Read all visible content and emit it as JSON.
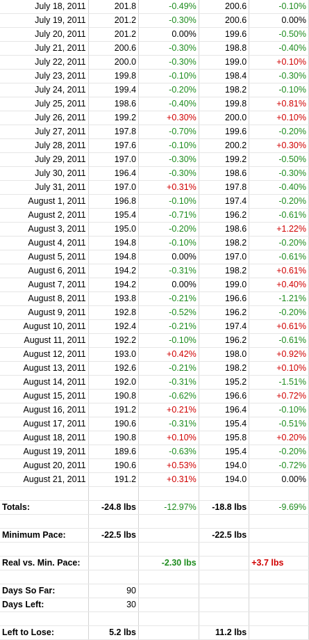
{
  "rows": [
    {
      "date": "July 18, 2011",
      "w1": "201.8",
      "p1": "-0.49%",
      "w2": "200.6",
      "p2": "-0.10%"
    },
    {
      "date": "July 19, 2011",
      "w1": "201.2",
      "p1": "-0.30%",
      "w2": "200.6",
      "p2": "0.00%"
    },
    {
      "date": "July 20, 2011",
      "w1": "201.2",
      "p1": "0.00%",
      "w2": "199.6",
      "p2": "-0.50%"
    },
    {
      "date": "July 21, 2011",
      "w1": "200.6",
      "p1": "-0.30%",
      "w2": "198.8",
      "p2": "-0.40%"
    },
    {
      "date": "July 22, 2011",
      "w1": "200.0",
      "p1": "-0.30%",
      "w2": "199.0",
      "p2": "+0.10%"
    },
    {
      "date": "July 23, 2011",
      "w1": "199.8",
      "p1": "-0.10%",
      "w2": "198.4",
      "p2": "-0.30%"
    },
    {
      "date": "July 24, 2011",
      "w1": "199.4",
      "p1": "-0.20%",
      "w2": "198.2",
      "p2": "-0.10%"
    },
    {
      "date": "July 25, 2011",
      "w1": "198.6",
      "p1": "-0.40%",
      "w2": "199.8",
      "p2": "+0.81%"
    },
    {
      "date": "July 26, 2011",
      "w1": "199.2",
      "p1": "+0.30%",
      "w2": "200.0",
      "p2": "+0.10%"
    },
    {
      "date": "July 27, 2011",
      "w1": "197.8",
      "p1": "-0.70%",
      "w2": "199.6",
      "p2": "-0.20%"
    },
    {
      "date": "July 28, 2011",
      "w1": "197.6",
      "p1": "-0.10%",
      "w2": "200.2",
      "p2": "+0.30%"
    },
    {
      "date": "July 29, 2011",
      "w1": "197.0",
      "p1": "-0.30%",
      "w2": "199.2",
      "p2": "-0.50%"
    },
    {
      "date": "July 30, 2011",
      "w1": "196.4",
      "p1": "-0.30%",
      "w2": "198.6",
      "p2": "-0.30%"
    },
    {
      "date": "July 31, 2011",
      "w1": "197.0",
      "p1": "+0.31%",
      "w2": "197.8",
      "p2": "-0.40%"
    },
    {
      "date": "August 1, 2011",
      "w1": "196.8",
      "p1": "-0.10%",
      "w2": "197.4",
      "p2": "-0.20%"
    },
    {
      "date": "August 2, 2011",
      "w1": "195.4",
      "p1": "-0.71%",
      "w2": "196.2",
      "p2": "-0.61%"
    },
    {
      "date": "August 3, 2011",
      "w1": "195.0",
      "p1": "-0.20%",
      "w2": "198.6",
      "p2": "+1.22%"
    },
    {
      "date": "August 4, 2011",
      "w1": "194.8",
      "p1": "-0.10%",
      "w2": "198.2",
      "p2": "-0.20%"
    },
    {
      "date": "August 5, 2011",
      "w1": "194.8",
      "p1": "0.00%",
      "w2": "197.0",
      "p2": "-0.61%"
    },
    {
      "date": "August 6, 2011",
      "w1": "194.2",
      "p1": "-0.31%",
      "w2": "198.2",
      "p2": "+0.61%"
    },
    {
      "date": "August 7, 2011",
      "w1": "194.2",
      "p1": "0.00%",
      "w2": "199.0",
      "p2": "+0.40%"
    },
    {
      "date": "August 8, 2011",
      "w1": "193.8",
      "p1": "-0.21%",
      "w2": "196.6",
      "p2": "-1.21%"
    },
    {
      "date": "August 9, 2011",
      "w1": "192.8",
      "p1": "-0.52%",
      "w2": "196.2",
      "p2": "-0.20%"
    },
    {
      "date": "August 10, 2011",
      "w1": "192.4",
      "p1": "-0.21%",
      "w2": "197.4",
      "p2": "+0.61%"
    },
    {
      "date": "August 11, 2011",
      "w1": "192.2",
      "p1": "-0.10%",
      "w2": "196.2",
      "p2": "-0.61%"
    },
    {
      "date": "August 12, 2011",
      "w1": "193.0",
      "p1": "+0.42%",
      "w2": "198.0",
      "p2": "+0.92%"
    },
    {
      "date": "August 13, 2011",
      "w1": "192.6",
      "p1": "-0.21%",
      "w2": "198.2",
      "p2": "+0.10%"
    },
    {
      "date": "August 14, 2011",
      "w1": "192.0",
      "p1": "-0.31%",
      "w2": "195.2",
      "p2": "-1.51%"
    },
    {
      "date": "August 15, 2011",
      "w1": "190.8",
      "p1": "-0.62%",
      "w2": "196.6",
      "p2": "+0.72%"
    },
    {
      "date": "August 16, 2011",
      "w1": "191.2",
      "p1": "+0.21%",
      "w2": "196.4",
      "p2": "-0.10%"
    },
    {
      "date": "August 17, 2011",
      "w1": "190.6",
      "p1": "-0.31%",
      "w2": "195.4",
      "p2": "-0.51%"
    },
    {
      "date": "August 18, 2011",
      "w1": "190.8",
      "p1": "+0.10%",
      "w2": "195.8",
      "p2": "+0.20%"
    },
    {
      "date": "August 19, 2011",
      "w1": "189.6",
      "p1": "-0.63%",
      "w2": "195.4",
      "p2": "-0.20%"
    },
    {
      "date": "August 20, 2011",
      "w1": "190.6",
      "p1": "+0.53%",
      "w2": "194.0",
      "p2": "-0.72%"
    },
    {
      "date": "August 21, 2011",
      "w1": "191.2",
      "p1": "+0.31%",
      "w2": "194.0",
      "p2": "0.00%"
    }
  ],
  "summary": {
    "totals_label": "Totals:",
    "totals_w1": "-24.8 lbs",
    "totals_p1": "-12.97%",
    "totals_w2": "-18.8 lbs",
    "totals_p2": "-9.69%",
    "min_pace_label": "Minimum Pace:",
    "min_pace_w1": "-22.5 lbs",
    "min_pace_w2": "-22.5 lbs",
    "real_vs_label": "Real vs. Min. Pace:",
    "real_vs_w1": "-2.30 lbs",
    "real_vs_w2": "+3.7 lbs",
    "days_so_far_label": "Days So Far:",
    "days_so_far": "90",
    "days_left_label": "Days Left:",
    "days_left": "30",
    "left_to_lose_label": "Left to Lose:",
    "left_to_lose_w1": "5.2 lbs",
    "left_to_lose_w2": "11.2 lbs"
  },
  "colors": {
    "negative": "#1e8c1e",
    "positive": "#d00000"
  }
}
